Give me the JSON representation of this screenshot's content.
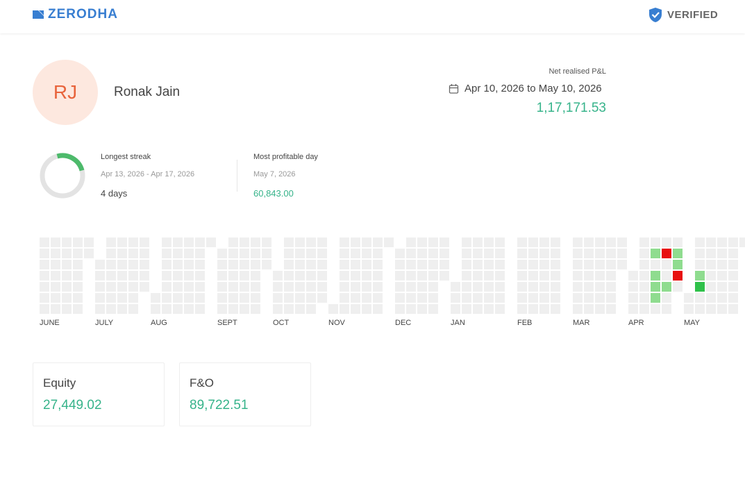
{
  "header": {
    "brand": "ZERODHA",
    "badge": "VERIFIED"
  },
  "profile": {
    "initials": "RJ",
    "name": "Ronak Jain"
  },
  "pnl": {
    "label": "Net realised P&L",
    "period": "Apr 10, 2026 to May 10, 2026",
    "value": "1,17,171.53"
  },
  "stats": [
    {
      "label": "Longest streak",
      "detail": "Apr 13, 2026 - Apr 17, 2026",
      "value": "4 days"
    },
    {
      "label": "Most profitable day",
      "detail": "May 7, 2026",
      "value": "60,843.00"
    }
  ],
  "heatmap": {
    "months": [
      "JUNE",
      "JULY",
      "AUG",
      "SEPT",
      "OCT",
      "NOV",
      "DEC",
      "JAN",
      "FEB",
      "MAR",
      "APR",
      "MAY"
    ]
  },
  "cards": [
    {
      "label": "Equity",
      "value": "27,449.02"
    },
    {
      "label": "F&O",
      "value": "89,722.51"
    }
  ]
}
